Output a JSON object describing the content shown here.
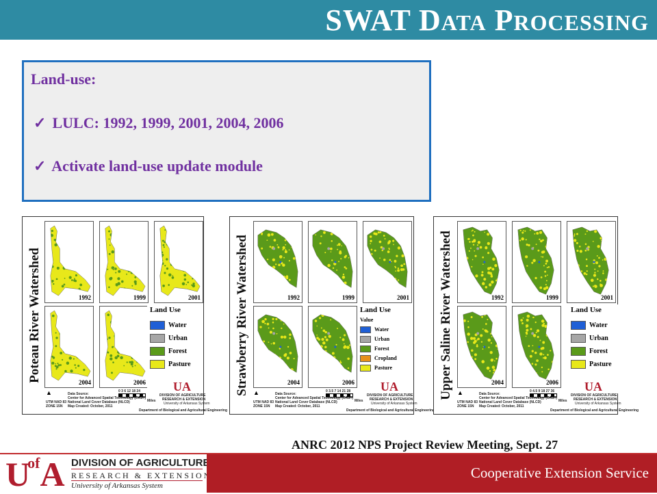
{
  "header": {
    "title_part1": "SWAT D",
    "title_part2": "ATA",
    "title_part3": " P",
    "title_part4": "ROCESSING"
  },
  "textbox": {
    "heading": "Land-use:",
    "items": [
      {
        "check": "✓",
        "text": "LULC: 1992, 1999, 2001, 2004, 2006"
      },
      {
        "check": "✓",
        "text": "Activate land-use update module"
      }
    ]
  },
  "colors": {
    "header_bar": "#2e8ba3",
    "text_purple": "#7030a0",
    "box_border": "#1f6fbf",
    "footer_red": "#b01e25",
    "water": "#1f5fd6",
    "urban": "#a6a6a6",
    "forest": "#5a9a1a",
    "pasture": "#e8e81a",
    "cropland": "#e6901a"
  },
  "panels": [
    {
      "title": "Poteau River Watershed",
      "years": [
        "1992",
        "1999",
        "2001",
        "2004",
        "2006"
      ],
      "legend_title": "Land Use",
      "legend_value": "",
      "legend_items": [
        {
          "label": "Water",
          "color": "#1f5fd6"
        },
        {
          "label": "Urban",
          "color": "#a6a6a6"
        },
        {
          "label": "Forest",
          "color": "#5a9a1a"
        },
        {
          "label": "Pasture",
          "color": "#e8e81a"
        }
      ],
      "scale_ticks": "0  3  6     12    18    24",
      "scale_unit": "Miles",
      "projection": "UTM NAD 83\nZONE 15N",
      "source_lines": [
        "Data Source:",
        "Center for Advanced Spatial Technology (CAST)",
        "National Land Cover Database (NLCD)",
        "Map Created: October, 2011"
      ],
      "division": "DIVISION OF AGRICULTURE",
      "division_sub": "RESEARCH & EXTENSION",
      "division_sys": "University of Arkansas System",
      "dept": "Department of Biological and Agricultural Engineering"
    },
    {
      "title": "Strawberry River Watershed",
      "years": [
        "1992",
        "1999",
        "2001",
        "2004",
        "2006"
      ],
      "legend_title": "Land Use",
      "legend_value": "Value",
      "legend_items": [
        {
          "label": "Water",
          "color": "#1f5fd6"
        },
        {
          "label": "Urban",
          "color": "#a6a6a6"
        },
        {
          "label": "Forest",
          "color": "#5a9a1a"
        },
        {
          "label": "Cropland",
          "color": "#e6901a"
        },
        {
          "label": "Pasture",
          "color": "#e8e81a"
        }
      ],
      "scale_ticks": "0  3.5  7     14    21    28",
      "scale_unit": "Miles",
      "projection": "UTM NAD 83\nZONE 15N",
      "source_lines": [
        "Data Source:",
        "Center for Advanced Spatial Technology (CAST)",
        "National Land Cover Database (NLCD)",
        "Map Created: October, 2011"
      ],
      "division": "DIVISION OF AGRICULTURE",
      "division_sub": "RESEARCH & EXTENSION",
      "division_sys": "University of Arkansas System",
      "dept": "Department of Biological and Agricultural Engineering"
    },
    {
      "title": "Upper Saline River Watershed",
      "years": [
        "1992",
        "1999",
        "2001",
        "2004",
        "2006"
      ],
      "legend_title": "Land Use",
      "legend_value": "",
      "legend_items": [
        {
          "label": "Water",
          "color": "#1f5fd6"
        },
        {
          "label": "Urban",
          "color": "#a6a6a6"
        },
        {
          "label": "Forest",
          "color": "#5a9a1a"
        },
        {
          "label": "Pasture",
          "color": "#e8e81a"
        }
      ],
      "scale_ticks": "0  4.5  9     18    27    36",
      "scale_unit": "Miles",
      "projection": "UTM NAD 83\nZONE 15N",
      "source_lines": [
        "Data Source:",
        "Center for Advanced Spatial Technology (CAST)",
        "National Land Cover Database (NLCD)",
        "Map Created: October, 2011"
      ],
      "division": "DIVISION OF AGRICULTURE",
      "division_sub": "RESEARCH & EXTENSION",
      "division_sys": "University of Arkansas System",
      "dept": "Department of Biological and Agricultural Engineering"
    }
  ],
  "meeting": "ANRC 2012 NPS Project Review Meeting, Sept. 27",
  "footer": {
    "logo_ua": "U",
    "logo_of": "of",
    "logo_a": "A",
    "logo_line1": "DIVISION OF AGRICULTURE",
    "logo_line2": "RESEARCH & EXTENSION",
    "logo_line3": "University of Arkansas System",
    "right_text": "Cooperative Extension Service"
  }
}
